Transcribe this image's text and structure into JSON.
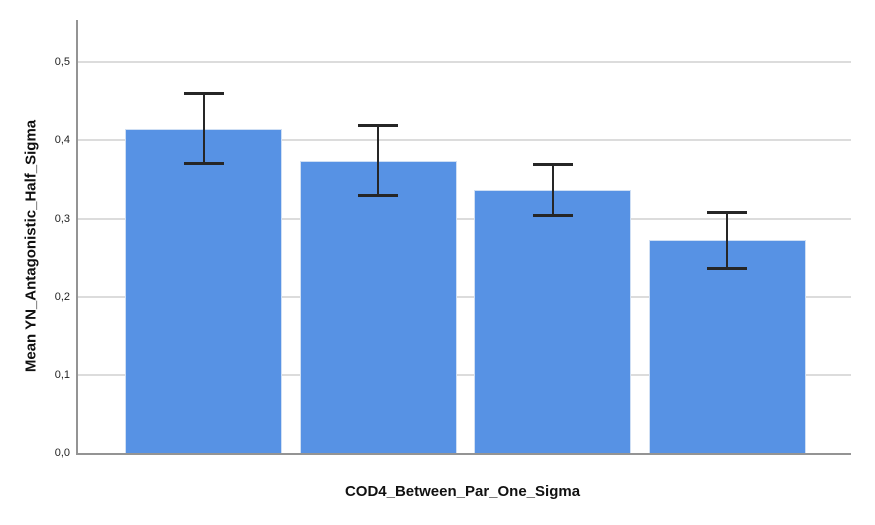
{
  "chart_data": {
    "type": "bar",
    "title": "",
    "xlabel": "COD4_Between_Par_One_Sigma",
    "ylabel": "Mean YN_Antagonistic_Half_Sigma",
    "categories": [
      "",
      "",
      "",
      ""
    ],
    "values": [
      0.415,
      0.374,
      0.336,
      0.272
    ],
    "error_low": [
      0.37,
      0.329,
      0.303,
      0.235
    ],
    "error_high": [
      0.46,
      0.42,
      0.37,
      0.309
    ],
    "yticks": [
      0.0,
      0.1,
      0.2,
      0.3,
      0.4,
      0.5
    ],
    "ytick_labels": [
      "0,0",
      "0,1",
      "0,2",
      "0,3",
      "0,4",
      "0,5"
    ],
    "ylim": [
      0,
      0.554
    ],
    "grid": true,
    "legend": "none",
    "bar_color": "#5792e4",
    "bar_border_color": "#cfdff4",
    "error_bar_color": "#262626",
    "gridline_color": "#dcdcdc",
    "axis_color": "#949494",
    "background_color": "#ffffff"
  }
}
